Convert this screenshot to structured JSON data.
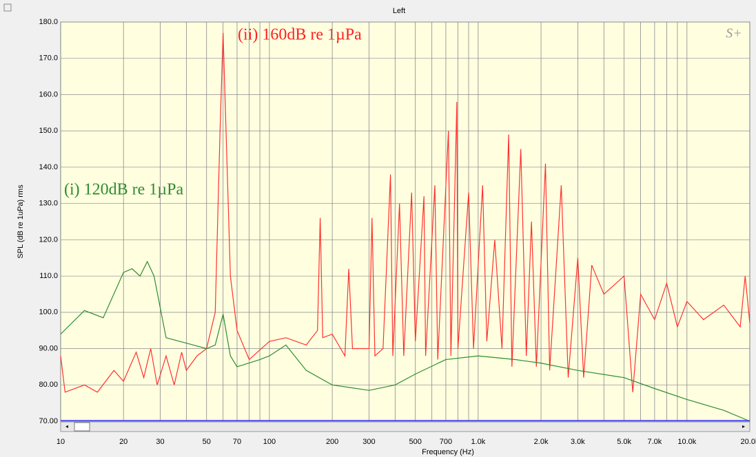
{
  "chart_data": {
    "type": "line",
    "title": "Left",
    "xlabel": "Frequency (Hz)",
    "ylabel": "SPL (dB re 1uPa) rms",
    "logo": "S+",
    "annotations": [
      {
        "text": "(ii) 160dB re 1µPa",
        "color": "#ff2020"
      },
      {
        "text": "(i) 120dB re 1µPa",
        "color": "#2e8b2e"
      }
    ],
    "xscale": "log",
    "grid": true,
    "xlim": [
      10,
      20000
    ],
    "ylim": [
      70,
      180
    ],
    "xticks": [
      10,
      20,
      30,
      {
        "value": 40,
        "label": null
      },
      50,
      {
        "value": 60,
        "label": null
      },
      70,
      {
        "value": 80,
        "label": null
      },
      {
        "value": 90,
        "label": null
      },
      100,
      200,
      300,
      {
        "value": 400,
        "label": null
      },
      500,
      {
        "value": 600,
        "label": null
      },
      700,
      {
        "value": 800,
        "label": null
      },
      {
        "value": 900,
        "label": null
      },
      {
        "value": 1000,
        "label": "1.0k"
      },
      {
        "value": 2000,
        "label": "2.0k"
      },
      {
        "value": 3000,
        "label": "3.0k"
      },
      {
        "value": 4000,
        "label": null
      },
      {
        "value": 5000,
        "label": "5.0k"
      },
      {
        "value": 6000,
        "label": null
      },
      {
        "value": 7000,
        "label": "7.0k"
      },
      {
        "value": 8000,
        "label": null
      },
      {
        "value": 9000,
        "label": null
      },
      {
        "value": 10000,
        "label": "10.0k"
      },
      {
        "value": 20000,
        "label": "20.0k"
      }
    ],
    "yticks": [
      {
        "value": 70,
        "label": "70.00"
      },
      {
        "value": 80,
        "label": "80.00"
      },
      {
        "value": 90,
        "label": "90.00"
      },
      {
        "value": 100,
        "label": "100.0"
      },
      {
        "value": 110,
        "label": "110.0"
      },
      {
        "value": 120,
        "label": "120.0"
      },
      {
        "value": 130,
        "label": "130.0"
      },
      {
        "value": 140,
        "label": "140.0"
      },
      {
        "value": 150,
        "label": "150.0"
      },
      {
        "value": 160,
        "label": "160.0"
      },
      {
        "value": 170,
        "label": "170.0"
      },
      {
        "value": 180,
        "label": "180.0"
      }
    ],
    "series": [
      {
        "color": "#ff3030",
        "x": [
          10,
          10.5,
          13,
          15,
          18,
          20,
          23,
          25,
          27,
          29,
          32,
          35,
          38,
          40,
          45,
          50,
          55,
          58,
          60,
          62,
          65,
          70,
          80,
          100,
          120,
          150,
          170,
          175,
          180,
          200,
          230,
          240,
          250,
          300,
          310,
          320,
          350,
          380,
          390,
          420,
          440,
          480,
          500,
          550,
          560,
          620,
          640,
          720,
          740,
          790,
          800,
          900,
          950,
          1050,
          1100,
          1200,
          1300,
          1400,
          1450,
          1600,
          1700,
          1800,
          1900,
          2100,
          2200,
          2500,
          2700,
          3000,
          3200,
          3500,
          4000,
          5000,
          5500,
          6000,
          7000,
          8000,
          9000,
          10000,
          12000,
          15000,
          18000,
          19000,
          20000
        ],
        "values": [
          88,
          78,
          80,
          78,
          84,
          81,
          89,
          82,
          90,
          80,
          88,
          80,
          89,
          84,
          88,
          90,
          100,
          150,
          177,
          150,
          110,
          95,
          87,
          92,
          93,
          91,
          95,
          126,
          93,
          94,
          88,
          112,
          90,
          90,
          126,
          88,
          90,
          138,
          88,
          130,
          88,
          133,
          92,
          132,
          88,
          135,
          87,
          150,
          88,
          158,
          90,
          133,
          90,
          135,
          92,
          120,
          90,
          149,
          85,
          145,
          88,
          125,
          85,
          141,
          84,
          135,
          82,
          115,
          82,
          113,
          105,
          110,
          78,
          105,
          98,
          108,
          96,
          103,
          98,
          102,
          96,
          110,
          97
        ]
      },
      {
        "color": "#2e8b2e",
        "x": [
          10,
          13,
          16,
          20,
          22,
          24,
          26,
          28,
          32,
          40,
          50,
          55,
          60,
          65,
          70,
          90,
          100,
          120,
          150,
          200,
          300,
          400,
          500,
          700,
          1000,
          1500,
          2000,
          3000,
          5000,
          7000,
          10000,
          15000,
          20000
        ],
        "values": [
          94,
          100.5,
          98.5,
          111,
          112,
          110,
          114,
          110,
          93,
          91.5,
          90,
          91,
          99.5,
          88,
          85,
          87,
          88,
          91,
          84,
          80,
          78.5,
          80,
          83,
          87,
          88,
          87,
          86,
          84,
          82,
          79,
          76,
          73,
          70
        ]
      }
    ]
  }
}
